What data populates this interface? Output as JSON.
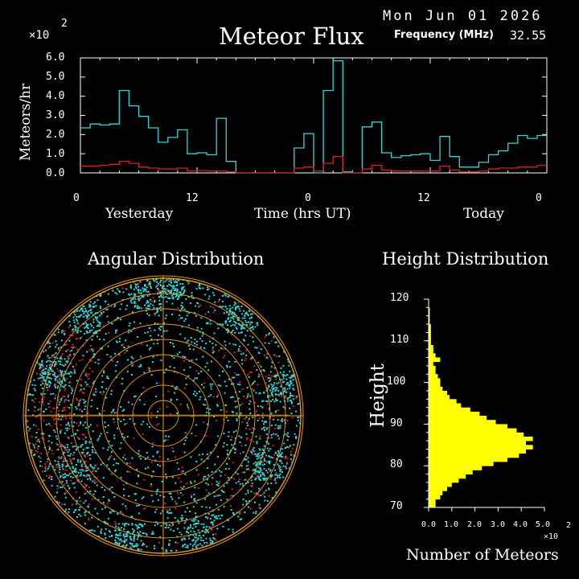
{
  "header": {
    "date": "Mon Jun 01 2026",
    "frequency_label": "Frequency (MHz)",
    "frequency_value": "32.55"
  },
  "colors": {
    "background": "#000000",
    "total_flux": "#33d6d6",
    "underdense_flux": "#d42020",
    "histogram": "#ffff00",
    "polar_rings": "#e89a1e",
    "polar_crosshair": "#e89a1e",
    "axis": "#ffffff"
  },
  "chart_data": [
    {
      "type": "line",
      "title": "Meteor Flux",
      "ylabel": "Meteors/hr",
      "y_multiplier": "×10",
      "y_multiplier_exp": "2",
      "xlabel": "Time (hrs UT)",
      "x_day_labels": [
        "Yesterday",
        "Today"
      ],
      "x_ticks": [
        0,
        12,
        24,
        36,
        48
      ],
      "x_tick_labels": [
        "0",
        "12",
        "0",
        "12",
        "0"
      ],
      "y_ticks": [
        0,
        1,
        2,
        3,
        4,
        5,
        6
      ],
      "y_tick_labels": [
        "0.0",
        "1.0",
        "2.0",
        "3.0",
        "4.0",
        "5.0",
        "6.0"
      ],
      "xlim": [
        0,
        48
      ],
      "ylim": [
        0,
        6
      ],
      "step": true,
      "series": [
        {
          "values": [
            2.35,
            2.55,
            2.5,
            2.55,
            4.3,
            3.5,
            2.95,
            2.35,
            1.6,
            1.85,
            2.25,
            1.0,
            1.05,
            0.95,
            2.85,
            0.6,
            0.0,
            0.0,
            0.0,
            0.0,
            0.0,
            0.0,
            1.3,
            2.05,
            0.0,
            4.3,
            5.85,
            0.05,
            0.0,
            2.4,
            2.65,
            1.05,
            0.8,
            0.9,
            0.95,
            1.0,
            0.65,
            1.9,
            0.85,
            0.3,
            0.3,
            0.55,
            0.95,
            1.15,
            1.55,
            1.95,
            1.8,
            1.95
          ]
        },
        {
          "values": [
            0.35,
            0.35,
            0.4,
            0.45,
            0.6,
            0.5,
            0.3,
            0.25,
            0.2,
            0.2,
            0.25,
            0.1,
            0.12,
            0.1,
            0.1,
            0.05,
            0.0,
            0.0,
            0.0,
            0.0,
            0.0,
            0.0,
            0.25,
            0.3,
            0.1,
            0.5,
            0.85,
            0.0,
            0.0,
            0.2,
            0.4,
            0.15,
            0.1,
            0.1,
            0.1,
            0.1,
            0.1,
            0.35,
            0.15,
            0.05,
            0.05,
            0.1,
            0.2,
            0.25,
            0.25,
            0.3,
            0.3,
            0.4
          ]
        }
      ]
    },
    {
      "type": "scatter",
      "title": "Angular Distribution",
      "projection": "polar",
      "rings": 9,
      "crosshair": true,
      "series": [
        {
          "color": "cyan",
          "count": 2600
        },
        {
          "color": "red",
          "count": 520
        }
      ]
    },
    {
      "type": "bar",
      "orientation": "horizontal",
      "title": "Height Distribution",
      "ylabel": "Height",
      "xlabel": "Number of Meteors",
      "x_multiplier": "×10",
      "x_multiplier_exp": "2",
      "ylim": [
        70,
        120
      ],
      "xlim": [
        0,
        5
      ],
      "y_ticks": [
        70,
        80,
        90,
        100,
        110,
        120
      ],
      "y_tick_labels": [
        "70",
        "80",
        "90",
        "100",
        "110",
        "120"
      ],
      "x_ticks": [
        0,
        1,
        2,
        3,
        4,
        5
      ],
      "x_tick_labels": [
        "0.0",
        "1.0",
        "2.0",
        "3.0",
        "4.0",
        "5.0"
      ],
      "bin_start": 70,
      "bin_width": 1,
      "values": [
        0.3,
        0.3,
        0.5,
        0.6,
        0.8,
        1.0,
        1.3,
        1.6,
        1.9,
        2.3,
        2.8,
        3.4,
        3.9,
        4.2,
        4.5,
        4.2,
        4.5,
        4.1,
        3.8,
        3.4,
        2.9,
        2.5,
        2.2,
        1.8,
        1.4,
        1.2,
        0.9,
        0.8,
        0.6,
        0.5,
        0.5,
        0.4,
        0.3,
        0.3,
        0.2,
        0.5,
        0.3,
        0.2,
        0.2,
        0.1,
        0.1,
        0.1,
        0.1,
        0.1,
        0.05,
        0.05,
        0.05,
        0.05,
        0.0,
        0.0
      ]
    }
  ]
}
